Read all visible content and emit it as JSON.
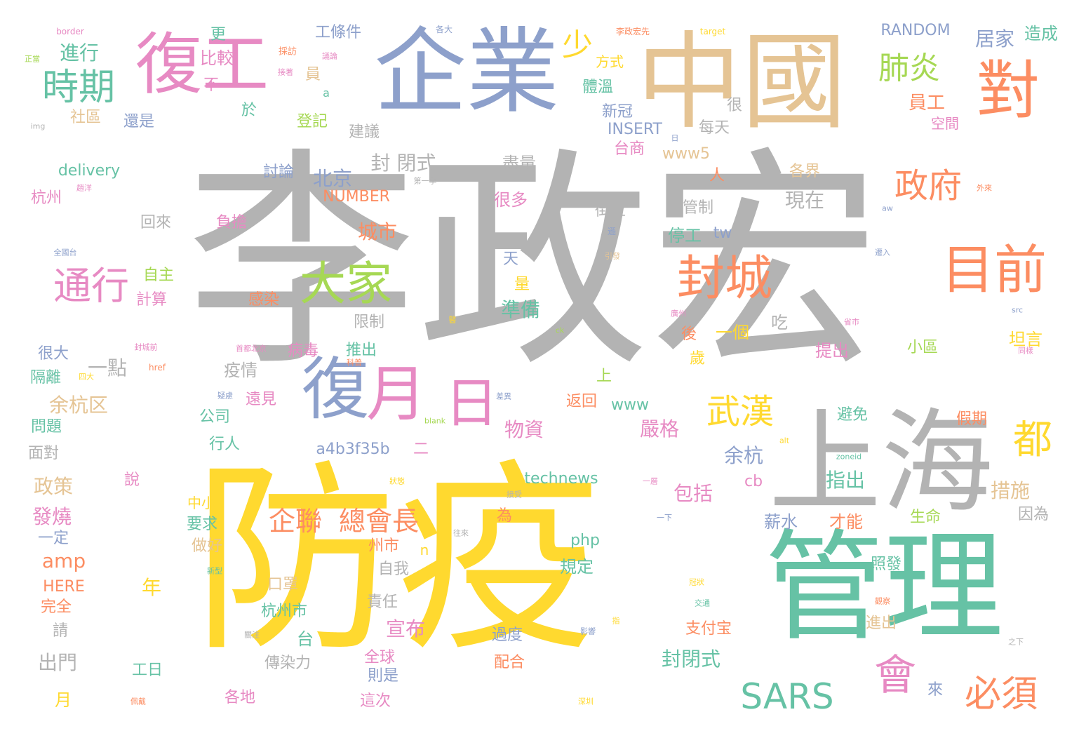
{
  "palette": {
    "gray": "#b3b3b3",
    "yellow": "#ffd92f",
    "green": "#66c2a5",
    "orange": "#fc8d62",
    "blue": "#8da0cb",
    "pink": "#e78ac3",
    "lime": "#a6d854",
    "tan": "#e5c494"
  },
  "words": [
    {
      "id": "w001",
      "text": "李政宏",
      "color": "gray"
    },
    {
      "id": "w002",
      "text": "防疫",
      "color": "yellow"
    },
    {
      "id": "w003",
      "text": "管理",
      "color": "green"
    },
    {
      "id": "w004",
      "text": "企業",
      "color": "blue"
    },
    {
      "id": "w005",
      "text": "中國",
      "color": "tan"
    },
    {
      "id": "w006",
      "text": "上海",
      "color": "gray"
    },
    {
      "id": "w007",
      "text": "復工",
      "color": "pink"
    },
    {
      "id": "w008",
      "text": "對",
      "color": "orange"
    },
    {
      "id": "w009",
      "text": "目前",
      "color": "orange"
    },
    {
      "id": "w010",
      "text": "封城",
      "color": "orange"
    },
    {
      "id": "w011",
      "text": "大家",
      "color": "lime"
    },
    {
      "id": "w012",
      "text": "復",
      "color": "blue"
    },
    {
      "id": "w013",
      "text": "月",
      "color": "pink"
    },
    {
      "id": "w014",
      "text": "日",
      "color": "pink"
    },
    {
      "id": "w015",
      "text": "時期",
      "color": "green"
    },
    {
      "id": "w016",
      "text": "通行",
      "color": "pink"
    },
    {
      "id": "w017",
      "text": "肺炎",
      "color": "lime"
    },
    {
      "id": "w018",
      "text": "政府",
      "color": "orange"
    },
    {
      "id": "w019",
      "text": "武漢",
      "color": "yellow"
    },
    {
      "id": "w020",
      "text": "會",
      "color": "pink"
    },
    {
      "id": "w021",
      "text": "都",
      "color": "yellow"
    },
    {
      "id": "w022",
      "text": "SARS",
      "color": "green"
    },
    {
      "id": "w023",
      "text": "必須",
      "color": "orange"
    },
    {
      "id": "w024",
      "text": "企聯",
      "color": "orange"
    },
    {
      "id": "w025",
      "text": "總會長",
      "color": "orange"
    },
    {
      "id": "w026",
      "text": "少",
      "color": "yellow"
    },
    {
      "id": "w027",
      "text": "進行",
      "color": "green"
    },
    {
      "id": "w028",
      "text": "居家",
      "color": "blue"
    },
    {
      "id": "w029",
      "text": "造成",
      "color": "green"
    },
    {
      "id": "w030",
      "text": "RANDOM",
      "color": "blue"
    },
    {
      "id": "w031",
      "text": "工條件",
      "color": "blue"
    },
    {
      "id": "w032",
      "text": "比較",
      "color": "pink"
    },
    {
      "id": "w033",
      "text": "更",
      "color": "green"
    },
    {
      "id": "w034",
      "text": "員",
      "color": "tan"
    },
    {
      "id": "w035",
      "text": "方式",
      "color": "yellow"
    },
    {
      "id": "w036",
      "text": "員工",
      "color": "orange"
    },
    {
      "id": "w037",
      "text": "不",
      "color": "pink"
    },
    {
      "id": "w038",
      "text": "體溫",
      "color": "green"
    },
    {
      "id": "w039",
      "text": "新冠",
      "color": "blue"
    },
    {
      "id": "w040",
      "text": "空間",
      "color": "pink"
    },
    {
      "id": "w041",
      "text": "很",
      "color": "gray"
    },
    {
      "id": "w042",
      "text": "每天",
      "color": "gray"
    },
    {
      "id": "w043",
      "text": "社區",
      "color": "tan"
    },
    {
      "id": "w044",
      "text": "還是",
      "color": "blue"
    },
    {
      "id": "w045",
      "text": "於",
      "color": "green"
    },
    {
      "id": "w046",
      "text": "登記",
      "color": "lime"
    },
    {
      "id": "w047",
      "text": "建議",
      "color": "gray"
    },
    {
      "id": "w048",
      "text": "INSERT",
      "color": "blue"
    },
    {
      "id": "w049",
      "text": "台商",
      "color": "pink"
    },
    {
      "id": "w050",
      "text": "www5",
      "color": "tan"
    },
    {
      "id": "w051",
      "text": "delivery",
      "color": "green"
    },
    {
      "id": "w052",
      "text": "討論",
      "color": "blue"
    },
    {
      "id": "w053",
      "text": "北京",
      "color": "blue"
    },
    {
      "id": "w054",
      "text": "封 閉式",
      "color": "gray"
    },
    {
      "id": "w055",
      "text": "盡量",
      "color": "gray"
    },
    {
      "id": "w056",
      "text": "各界",
      "color": "tan"
    },
    {
      "id": "w057",
      "text": "杭州",
      "color": "pink"
    },
    {
      "id": "w058",
      "text": "NUMBER",
      "color": "orange"
    },
    {
      "id": "w059",
      "text": "人",
      "color": "orange"
    },
    {
      "id": "w060",
      "text": "現在",
      "color": "gray"
    },
    {
      "id": "w061",
      "text": "很多",
      "color": "pink"
    },
    {
      "id": "w062",
      "text": "街上",
      "color": "gray"
    },
    {
      "id": "w063",
      "text": "回來",
      "color": "gray"
    },
    {
      "id": "w064",
      "text": "負擔",
      "color": "pink"
    },
    {
      "id": "w065",
      "text": "城市",
      "color": "orange"
    },
    {
      "id": "w066",
      "text": "管制",
      "color": "gray"
    },
    {
      "id": "w067",
      "text": "停工",
      "color": "green"
    },
    {
      "id": "w068",
      "text": "tw",
      "color": "blue"
    },
    {
      "id": "w069",
      "text": "自主",
      "color": "lime"
    },
    {
      "id": "w070",
      "text": "計算",
      "color": "pink"
    },
    {
      "id": "w071",
      "text": "天",
      "color": "blue"
    },
    {
      "id": "w072",
      "text": "量",
      "color": "yellow"
    },
    {
      "id": "w073",
      "text": "感染",
      "color": "orange"
    },
    {
      "id": "w074",
      "text": "準備",
      "color": "green"
    },
    {
      "id": "w075",
      "text": "限制",
      "color": "gray"
    },
    {
      "id": "w076",
      "text": "吃",
      "color": "gray"
    },
    {
      "id": "w077",
      "text": "很大",
      "color": "blue"
    },
    {
      "id": "w078",
      "text": "一點",
      "color": "gray"
    },
    {
      "id": "w079",
      "text": "病毒",
      "color": "pink"
    },
    {
      "id": "w080",
      "text": "推出",
      "color": "green"
    },
    {
      "id": "w081",
      "text": "後",
      "color": "orange"
    },
    {
      "id": "w082",
      "text": "一個",
      "color": "yellow"
    },
    {
      "id": "w083",
      "text": "坦言",
      "color": "yellow"
    },
    {
      "id": "w084",
      "text": "提出",
      "color": "pink"
    },
    {
      "id": "w085",
      "text": "小區",
      "color": "lime"
    },
    {
      "id": "w086",
      "text": "隔離",
      "color": "green"
    },
    {
      "id": "w087",
      "text": "疫情",
      "color": "gray"
    },
    {
      "id": "w088",
      "text": "歲",
      "color": "yellow"
    },
    {
      "id": "w089",
      "text": "余杭区",
      "color": "tan"
    },
    {
      "id": "w090",
      "text": "上",
      "color": "lime"
    },
    {
      "id": "w091",
      "text": "遠見",
      "color": "pink"
    },
    {
      "id": "w092",
      "text": "返回",
      "color": "orange"
    },
    {
      "id": "w093",
      "text": "www",
      "color": "green"
    },
    {
      "id": "w094",
      "text": "問題",
      "color": "green"
    },
    {
      "id": "w095",
      "text": "公司",
      "color": "green"
    },
    {
      "id": "w096",
      "text": "物資",
      "color": "pink"
    },
    {
      "id": "w097",
      "text": "嚴格",
      "color": "pink"
    },
    {
      "id": "w098",
      "text": "避免",
      "color": "green"
    },
    {
      "id": "w099",
      "text": "假期",
      "color": "orange"
    },
    {
      "id": "w100",
      "text": "面對",
      "color": "gray"
    },
    {
      "id": "w101",
      "text": "行人",
      "color": "green"
    },
    {
      "id": "w102",
      "text": "a4b3f35b",
      "color": "blue"
    },
    {
      "id": "w103",
      "text": "二",
      "color": "pink"
    },
    {
      "id": "w104",
      "text": "余杭",
      "color": "blue"
    },
    {
      "id": "w105",
      "text": "政策",
      "color": "tan"
    },
    {
      "id": "w106",
      "text": "說",
      "color": "pink"
    },
    {
      "id": "w107",
      "text": "technews",
      "color": "green"
    },
    {
      "id": "w108",
      "text": "cb",
      "color": "pink"
    },
    {
      "id": "w109",
      "text": "指出",
      "color": "green"
    },
    {
      "id": "w110",
      "text": "包括",
      "color": "pink"
    },
    {
      "id": "w111",
      "text": "措施",
      "color": "tan"
    },
    {
      "id": "w112",
      "text": "發燒",
      "color": "pink"
    },
    {
      "id": "w113",
      "text": "中小",
      "color": "yellow"
    },
    {
      "id": "w114",
      "text": "要求",
      "color": "green"
    },
    {
      "id": "w115",
      "text": "為",
      "color": "orange"
    },
    {
      "id": "w116",
      "text": "薪水",
      "color": "blue"
    },
    {
      "id": "w117",
      "text": "才能",
      "color": "orange"
    },
    {
      "id": "w118",
      "text": "生命",
      "color": "lime"
    },
    {
      "id": "w119",
      "text": "因為",
      "color": "gray"
    },
    {
      "id": "w120",
      "text": "一定",
      "color": "blue"
    },
    {
      "id": "w121",
      "text": "做好",
      "color": "tan"
    },
    {
      "id": "w122",
      "text": "州市",
      "color": "orange"
    },
    {
      "id": "w123",
      "text": "php",
      "color": "green"
    },
    {
      "id": "w124",
      "text": "n",
      "color": "yellow"
    },
    {
      "id": "w125",
      "text": "amp",
      "color": "orange"
    },
    {
      "id": "w126",
      "text": "自我",
      "color": "gray"
    },
    {
      "id": "w127",
      "text": "規定",
      "color": "green"
    },
    {
      "id": "w128",
      "text": "照發",
      "color": "green"
    },
    {
      "id": "w129",
      "text": "HERE",
      "color": "orange"
    },
    {
      "id": "w130",
      "text": "年",
      "color": "yellow"
    },
    {
      "id": "w131",
      "text": "口罩",
      "color": "tan"
    },
    {
      "id": "w132",
      "text": "完全",
      "color": "orange"
    },
    {
      "id": "w133",
      "text": "責任",
      "color": "gray"
    },
    {
      "id": "w134",
      "text": "杭州市",
      "color": "green"
    },
    {
      "id": "w135",
      "text": "請",
      "color": "gray"
    },
    {
      "id": "w136",
      "text": "宣布",
      "color": "pink"
    },
    {
      "id": "w137",
      "text": "支付宝",
      "color": "orange"
    },
    {
      "id": "w138",
      "text": "進出",
      "color": "tan"
    },
    {
      "id": "w139",
      "text": "台",
      "color": "green"
    },
    {
      "id": "w140",
      "text": "過度",
      "color": "blue"
    },
    {
      "id": "w141",
      "text": "出門",
      "color": "gray"
    },
    {
      "id": "w142",
      "text": "傳染力",
      "color": "gray"
    },
    {
      "id": "w143",
      "text": "全球",
      "color": "pink"
    },
    {
      "id": "w144",
      "text": "配合",
      "color": "orange"
    },
    {
      "id": "w145",
      "text": "封閉式",
      "color": "green"
    },
    {
      "id": "w146",
      "text": "則是",
      "color": "blue"
    },
    {
      "id": "w147",
      "text": "工日",
      "color": "green"
    },
    {
      "id": "w148",
      "text": "月",
      "color": "yellow"
    },
    {
      "id": "w149",
      "text": "各地",
      "color": "pink"
    },
    {
      "id": "w150",
      "text": "這次",
      "color": "pink"
    },
    {
      "id": "w151",
      "text": "來",
      "color": "blue"
    },
    {
      "id": "w152",
      "text": "border",
      "color": "pink"
    },
    {
      "id": "w153",
      "text": "正當",
      "color": "lime"
    },
    {
      "id": "w154",
      "text": "採訪",
      "color": "orange"
    },
    {
      "id": "w155",
      "text": "接著",
      "color": "pink"
    },
    {
      "id": "w156",
      "text": "各大",
      "color": "blue"
    },
    {
      "id": "w157",
      "text": "李政宏先",
      "color": "orange"
    },
    {
      "id": "w158",
      "text": "target",
      "color": "yellow"
    },
    {
      "id": "w159",
      "text": "img",
      "color": "gray"
    },
    {
      "id": "w160",
      "text": "議論",
      "color": "pink"
    },
    {
      "id": "w161",
      "text": "a",
      "color": "green"
    },
    {
      "id": "w162",
      "text": "第一季",
      "color": "gray"
    },
    {
      "id": "w163",
      "text": "外來",
      "color": "orange"
    },
    {
      "id": "w164",
      "text": "趙洋",
      "color": "pink"
    },
    {
      "id": "w165",
      "text": "aw",
      "color": "blue"
    },
    {
      "id": "w166",
      "text": "全國台",
      "color": "blue"
    },
    {
      "id": "w167",
      "text": "遜",
      "color": "blue"
    },
    {
      "id": "w168",
      "text": "引發",
      "color": "tan"
    },
    {
      "id": "w169",
      "text": "遷入",
      "color": "blue"
    },
    {
      "id": "w170",
      "text": "廣州",
      "color": "pink"
    },
    {
      "id": "w171",
      "text": "src",
      "color": "blue"
    },
    {
      "id": "w172",
      "text": "醫",
      "color": "yellow"
    },
    {
      "id": "w173",
      "text": "ck",
      "color": "lime"
    },
    {
      "id": "w174",
      "text": "省市",
      "color": "pink"
    },
    {
      "id": "w175",
      "text": "封城前",
      "color": "pink"
    },
    {
      "id": "w176",
      "text": "首都北京",
      "color": "pink"
    },
    {
      "id": "w177",
      "text": "科普",
      "color": "orange"
    },
    {
      "id": "w178",
      "text": "同樣",
      "color": "pink"
    },
    {
      "id": "w179",
      "text": "href",
      "color": "orange"
    },
    {
      "id": "w180",
      "text": "四大",
      "color": "yellow"
    },
    {
      "id": "w181",
      "text": "疑慮",
      "color": "blue"
    },
    {
      "id": "w182",
      "text": "差異",
      "color": "blue"
    },
    {
      "id": "w183",
      "text": "blank",
      "color": "lime"
    },
    {
      "id": "w184",
      "text": "alt",
      "color": "yellow"
    },
    {
      "id": "w185",
      "text": "zoneid",
      "color": "green"
    },
    {
      "id": "w186",
      "text": "狀態",
      "color": "yellow"
    },
    {
      "id": "w187",
      "text": "接受",
      "color": "gray"
    },
    {
      "id": "w188",
      "text": "一層",
      "color": "pink"
    },
    {
      "id": "w189",
      "text": "一下",
      "color": "blue"
    },
    {
      "id": "w190",
      "text": "往來",
      "color": "gray"
    },
    {
      "id": "w191",
      "text": "新型",
      "color": "green"
    },
    {
      "id": "w192",
      "text": "冠狀",
      "color": "yellow"
    },
    {
      "id": "w193",
      "text": "交通",
      "color": "green"
    },
    {
      "id": "w194",
      "text": "觀察",
      "color": "orange"
    },
    {
      "id": "w195",
      "text": "關注",
      "color": "gray"
    },
    {
      "id": "w196",
      "text": "指",
      "color": "yellow"
    },
    {
      "id": "w197",
      "text": "影響",
      "color": "blue"
    },
    {
      "id": "w198",
      "text": "之下",
      "color": "gray"
    },
    {
      "id": "w199",
      "text": "佩戴",
      "color": "orange"
    },
    {
      "id": "w200",
      "text": "深圳",
      "color": "yellow"
    },
    {
      "id": "w201",
      "text": "日",
      "color": "blue"
    }
  ]
}
